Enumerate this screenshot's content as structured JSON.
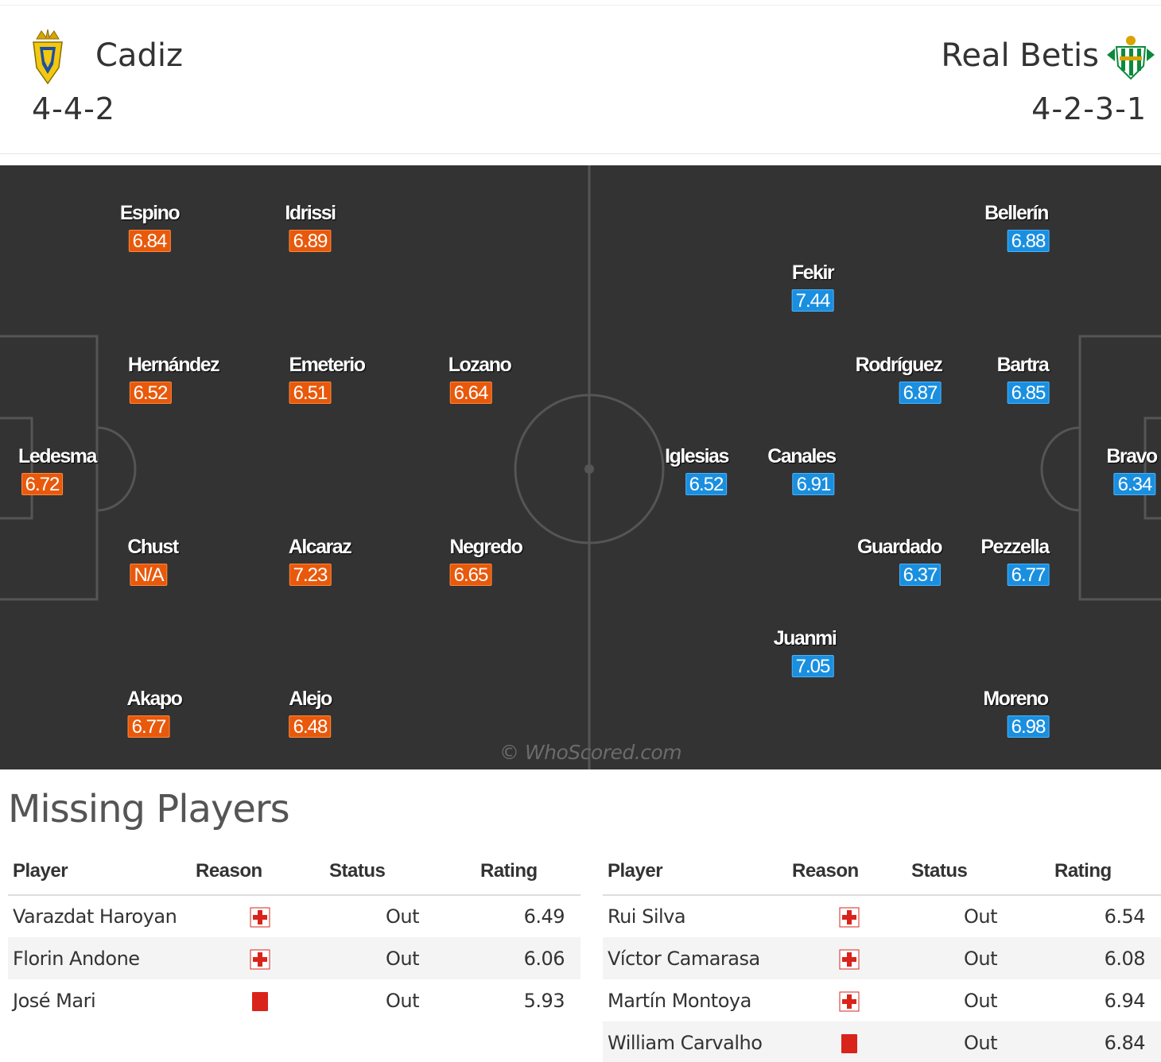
{
  "header": {
    "home": {
      "name": "Cadiz",
      "formation": "4-4-2"
    },
    "away": {
      "name": "Real Betis",
      "formation": "4-2-3-1"
    }
  },
  "pitch": {
    "watermark": "© WhoScored.com",
    "home_players": [
      {
        "name": "Espino",
        "rating": "6.84"
      },
      {
        "name": "Idrissi",
        "rating": "6.89"
      },
      {
        "name": "Hernández",
        "rating": "6.52"
      },
      {
        "name": "Emeterio",
        "rating": "6.51"
      },
      {
        "name": "Lozano",
        "rating": "6.64"
      },
      {
        "name": "Ledesma",
        "rating": "6.72"
      },
      {
        "name": "Chust",
        "rating": "N/A"
      },
      {
        "name": "Alcaraz",
        "rating": "7.23"
      },
      {
        "name": "Negredo",
        "rating": "6.65"
      },
      {
        "name": "Akapo",
        "rating": "6.77"
      },
      {
        "name": "Alejo",
        "rating": "6.48"
      }
    ],
    "away_players": [
      {
        "name": "Bellerín",
        "rating": "6.88"
      },
      {
        "name": "Fekir",
        "rating": "7.44"
      },
      {
        "name": "Rodríguez",
        "rating": "6.87"
      },
      {
        "name": "Bartra",
        "rating": "6.85"
      },
      {
        "name": "Iglesias",
        "rating": "6.52"
      },
      {
        "name": "Canales",
        "rating": "6.91"
      },
      {
        "name": "Bravo",
        "rating": "6.34"
      },
      {
        "name": "Guardado",
        "rating": "6.37"
      },
      {
        "name": "Pezzella",
        "rating": "6.77"
      },
      {
        "name": "Juanmi",
        "rating": "7.05"
      },
      {
        "name": "Moreno",
        "rating": "6.98"
      }
    ]
  },
  "missing": {
    "title": "Missing Players",
    "columns": {
      "player": "Player",
      "reason": "Reason",
      "status": "Status",
      "rating": "Rating"
    },
    "home": [
      {
        "player": "Varazdat Haroyan",
        "reason": "injury-icon",
        "status": "Out",
        "rating": "6.49"
      },
      {
        "player": "Florin Andone",
        "reason": "injury-icon",
        "status": "Out",
        "rating": "6.06"
      },
      {
        "player": "José Mari",
        "reason": "red-card-icon",
        "status": "Out",
        "rating": "5.93"
      }
    ],
    "away": [
      {
        "player": "Rui Silva",
        "reason": "injury-icon",
        "status": "Out",
        "rating": "6.54"
      },
      {
        "player": "Víctor Camarasa",
        "reason": "injury-icon",
        "status": "Out",
        "rating": "6.08"
      },
      {
        "player": "Martín Montoya",
        "reason": "injury-icon",
        "status": "Out",
        "rating": "6.94"
      },
      {
        "player": "William Carvalho",
        "reason": "red-card-icon",
        "status": "Out",
        "rating": "6.84"
      }
    ]
  },
  "colors": {
    "pitch": "#333333",
    "home_rating": "#e8590c",
    "away_rating": "#1a8fe0",
    "missing_rating": "#e8590c",
    "reason_icon": "#d9241c"
  }
}
